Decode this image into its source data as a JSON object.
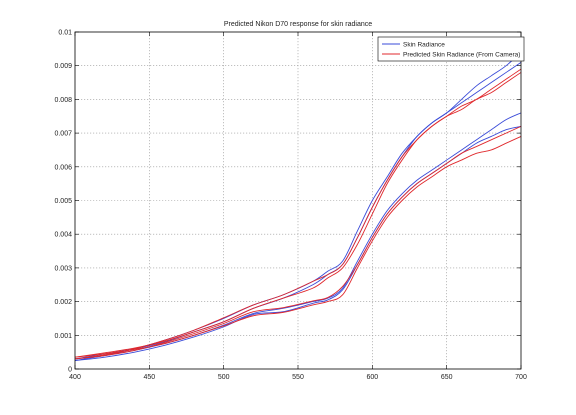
{
  "chart_data": {
    "type": "line",
    "title": "Predicted Nikon D70 response for skin radiance",
    "xlabel": "",
    "ylabel": "",
    "xlim": [
      400,
      700
    ],
    "ylim": [
      0,
      0.01
    ],
    "x_ticks": [
      "400",
      "450",
      "500",
      "550",
      "600",
      "650",
      "700"
    ],
    "y_ticks": [
      "0",
      "0.001",
      "0.002",
      "0.003",
      "0.004",
      "0.005",
      "0.006",
      "0.007",
      "0.008",
      "0.009",
      "0.01"
    ],
    "grid": true,
    "legend_position": "top-right",
    "legend": [
      {
        "label": "Skin Radiance",
        "color": "#3a4bd8"
      },
      {
        "label": "Predicted Skin Radiance (From Camera)",
        "color": "#e0282c"
      }
    ],
    "series": [
      {
        "group": "Skin Radiance",
        "color": "#3a4bd8",
        "x": [
          400,
          420,
          440,
          460,
          480,
          500,
          520,
          540,
          560,
          570,
          580,
          590,
          600,
          610,
          620,
          630,
          640,
          650,
          660,
          670,
          680,
          690,
          700
        ],
        "y": [
          0.00025,
          0.00035,
          0.0005,
          0.0007,
          0.00095,
          0.00125,
          0.00162,
          0.0017,
          0.00195,
          0.00205,
          0.00235,
          0.0031,
          0.0039,
          0.0046,
          0.0051,
          0.0055,
          0.0058,
          0.0061,
          0.0064,
          0.0067,
          0.0069,
          0.0071,
          0.0072
        ]
      },
      {
        "group": "Skin Radiance",
        "color": "#3a4bd8",
        "x": [
          400,
          420,
          440,
          460,
          480,
          500,
          520,
          540,
          560,
          570,
          580,
          590,
          600,
          610,
          620,
          630,
          640,
          650,
          660,
          670,
          680,
          690,
          700
        ],
        "y": [
          0.00025,
          0.0004,
          0.00055,
          0.00075,
          0.001,
          0.0013,
          0.00165,
          0.0018,
          0.002,
          0.0021,
          0.0024,
          0.0032,
          0.004,
          0.0047,
          0.0052,
          0.0056,
          0.0059,
          0.0062,
          0.0065,
          0.0068,
          0.0071,
          0.0074,
          0.0076
        ]
      },
      {
        "group": "Skin Radiance",
        "color": "#3a4bd8",
        "x": [
          400,
          420,
          440,
          460,
          480,
          500,
          520,
          540,
          560,
          570,
          580,
          590,
          600,
          610,
          620,
          630,
          640,
          650,
          660,
          670,
          680,
          690,
          700
        ],
        "y": [
          0.0003,
          0.0004,
          0.0006,
          0.0008,
          0.0011,
          0.0014,
          0.0018,
          0.0021,
          0.0025,
          0.0028,
          0.0031,
          0.0039,
          0.0048,
          0.0056,
          0.0063,
          0.0069,
          0.0073,
          0.0076,
          0.008,
          0.0084,
          0.0087,
          0.009,
          0.0094
        ]
      },
      {
        "group": "Skin Radiance",
        "color": "#3a4bd8",
        "x": [
          400,
          420,
          440,
          460,
          480,
          500,
          520,
          540,
          560,
          570,
          580,
          590,
          600,
          610,
          620,
          630,
          640,
          650,
          660,
          670,
          680,
          690,
          700
        ],
        "y": [
          0.0003,
          0.00045,
          0.0006,
          0.00085,
          0.00115,
          0.0015,
          0.0019,
          0.0022,
          0.0026,
          0.0029,
          0.0032,
          0.0041,
          0.005,
          0.0057,
          0.0064,
          0.0069,
          0.0073,
          0.0076,
          0.0079,
          0.0082,
          0.0085,
          0.0088,
          0.0091
        ]
      },
      {
        "group": "Predicted",
        "color": "#e0282c",
        "x": [
          400,
          420,
          440,
          460,
          480,
          500,
          520,
          540,
          560,
          570,
          580,
          590,
          600,
          610,
          620,
          630,
          640,
          650,
          660,
          670,
          680,
          690,
          700
        ],
        "y": [
          0.00035,
          0.00045,
          0.00058,
          0.00075,
          0.001,
          0.00128,
          0.00158,
          0.00168,
          0.0019,
          0.002,
          0.0022,
          0.003,
          0.0038,
          0.0045,
          0.005,
          0.0054,
          0.0057,
          0.006,
          0.0062,
          0.0064,
          0.0065,
          0.0067,
          0.0069
        ]
      },
      {
        "group": "Predicted",
        "color": "#e0282c",
        "x": [
          400,
          420,
          440,
          460,
          480,
          500,
          520,
          540,
          560,
          570,
          580,
          590,
          600,
          610,
          620,
          630,
          640,
          650,
          660,
          670,
          680,
          690,
          700
        ],
        "y": [
          0.0003,
          0.0004,
          0.00055,
          0.00078,
          0.00105,
          0.00135,
          0.0017,
          0.00182,
          0.00202,
          0.00212,
          0.00245,
          0.0031,
          0.0039,
          0.0046,
          0.0051,
          0.0055,
          0.0058,
          0.0061,
          0.0064,
          0.0066,
          0.0068,
          0.007,
          0.0072
        ]
      },
      {
        "group": "Predicted",
        "color": "#e0282c",
        "x": [
          400,
          420,
          440,
          460,
          480,
          500,
          520,
          540,
          560,
          570,
          580,
          590,
          600,
          610,
          620,
          630,
          640,
          650,
          660,
          670,
          680,
          690,
          700
        ],
        "y": [
          0.00035,
          0.00048,
          0.00062,
          0.00082,
          0.0011,
          0.0014,
          0.0018,
          0.0021,
          0.0024,
          0.0027,
          0.003,
          0.0037,
          0.0046,
          0.0055,
          0.0062,
          0.0068,
          0.0072,
          0.0075,
          0.0078,
          0.008,
          0.0083,
          0.0086,
          0.0089
        ]
      },
      {
        "group": "Predicted",
        "color": "#e0282c",
        "x": [
          400,
          420,
          440,
          460,
          480,
          500,
          520,
          540,
          560,
          570,
          580,
          590,
          600,
          610,
          620,
          630,
          640,
          650,
          660,
          670,
          680,
          690,
          700
        ],
        "y": [
          0.0003,
          0.00042,
          0.0006,
          0.00085,
          0.00115,
          0.00152,
          0.0019,
          0.0022,
          0.0026,
          0.0028,
          0.0031,
          0.0039,
          0.0048,
          0.0056,
          0.0063,
          0.0068,
          0.0072,
          0.0075,
          0.0077,
          0.008,
          0.0082,
          0.0085,
          0.0088
        ]
      }
    ]
  }
}
